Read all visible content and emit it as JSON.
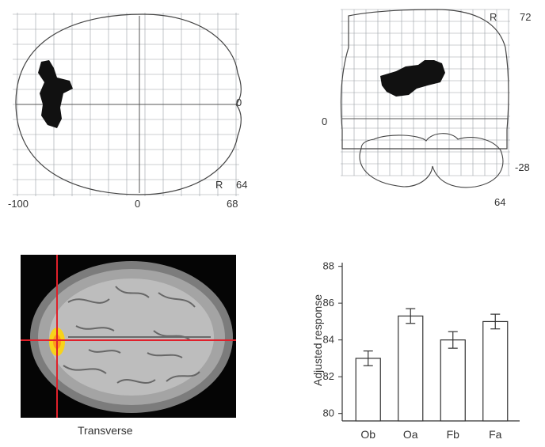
{
  "axial_glass_brain": {
    "labels": {
      "r": "R",
      "zero_right": "0",
      "r_value": "64",
      "x_min": "-100",
      "x_zero": "0",
      "x_max": "68"
    }
  },
  "coronal_glass_brain": {
    "labels": {
      "r": "R",
      "top_value": "72",
      "zero_left": "0",
      "bottom_right": "-28",
      "bottom_value": "64"
    }
  },
  "mri_panel": {
    "caption": "Transverse",
    "crosshair_color": "#e0202a",
    "activation_color": "#f7d21a"
  },
  "chart_data": {
    "type": "bar",
    "categories": [
      "Ob",
      "Oa",
      "Fb",
      "Fa"
    ],
    "values": [
      83.0,
      85.3,
      84.0,
      85.0
    ],
    "errors": [
      0.4,
      0.4,
      0.45,
      0.4
    ],
    "ylabel": "Adjusted response",
    "ylim": [
      79.6,
      88.2
    ],
    "yticks": [
      "80",
      "82",
      "84",
      "86",
      "88"
    ],
    "ytick_values": [
      80,
      82,
      84,
      86,
      88
    ]
  }
}
